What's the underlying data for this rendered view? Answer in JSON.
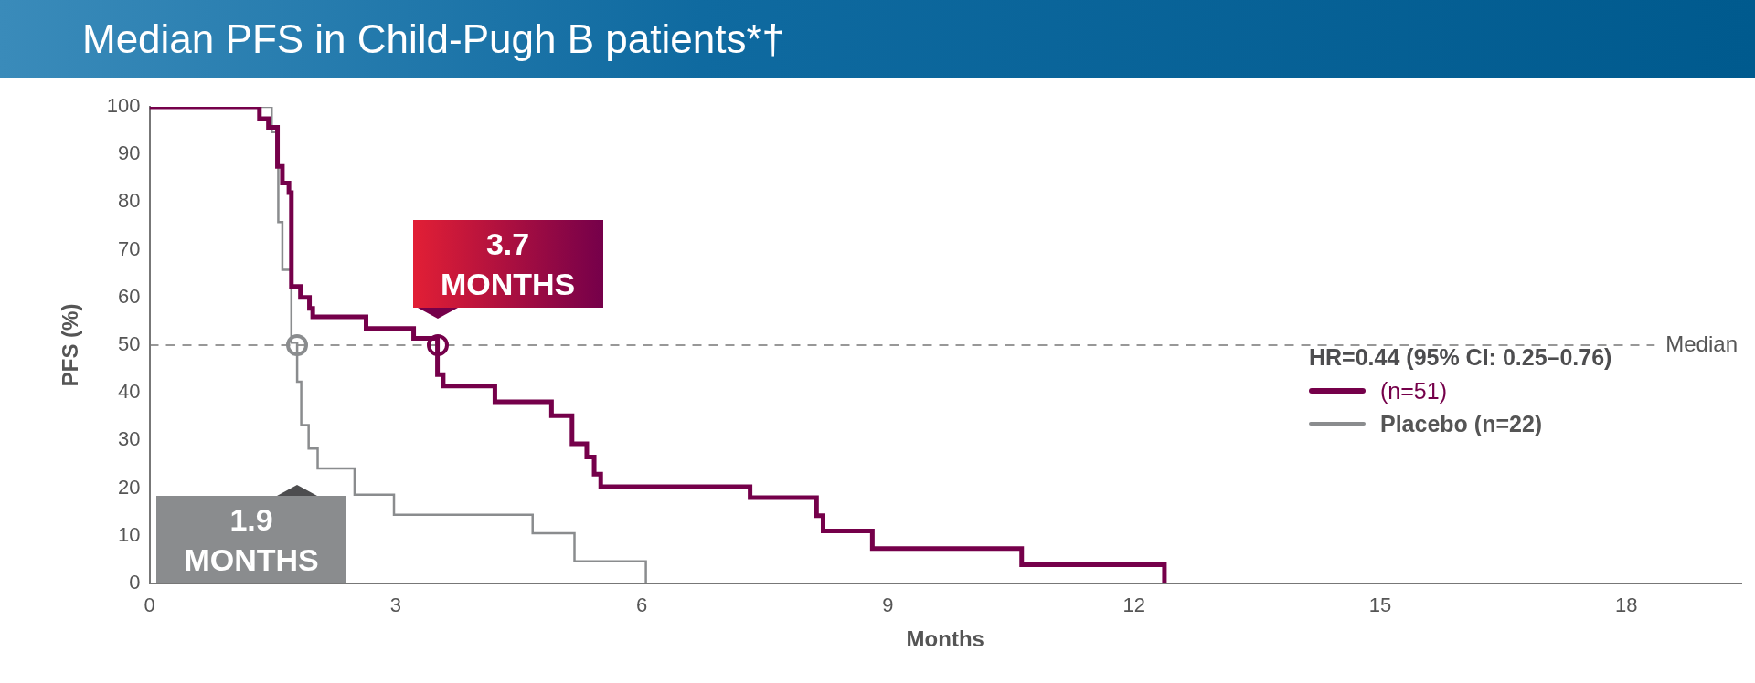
{
  "chart_data": {
    "type": "step",
    "title": "Median PFS in Child-Pugh B patients*†",
    "xlabel": "Months",
    "ylabel": "PFS (%)",
    "series": [
      {
        "name": "(n=51)",
        "color": "#75004a",
        "x": [
          0,
          1.34,
          1.45,
          1.56,
          1.62,
          1.7,
          1.73,
          1.84,
          1.95,
          1.99,
          2.64,
          3.22,
          3.51,
          3.58,
          4.21,
          4.9,
          5.15,
          5.33,
          5.42,
          5.5,
          7.32,
          8.13,
          8.21,
          8.81,
          10.63,
          12.37
        ],
        "values": [
          100,
          97.5,
          95.7,
          87.5,
          84,
          82,
          62.3,
          60,
          57.7,
          55.9,
          53.5,
          51.4,
          43.8,
          41.4,
          38.1,
          35.2,
          29.3,
          26.5,
          22.9,
          20.3,
          18,
          14.2,
          11,
          7.3,
          3.9,
          0
        ]
      },
      {
        "name": "Placebo (n=22)",
        "color": "#8a8c8e",
        "x": [
          0,
          1.49,
          1.57,
          1.62,
          1.73,
          1.8,
          1.85,
          1.94,
          2.05,
          2.5,
          2.98,
          4.67,
          5.18,
          6.05
        ],
        "values": [
          100,
          94.7,
          75.8,
          65.8,
          50.5,
          42.3,
          33.2,
          28.3,
          24.1,
          18.6,
          14.4,
          10.5,
          4.6,
          0
        ]
      }
    ],
    "xlim": [
      0,
      19.4
    ],
    "xticks": [
      0,
      3,
      6,
      9,
      12,
      15,
      18
    ],
    "ylim": [
      0,
      100
    ],
    "yticks": [
      0,
      10,
      20,
      30,
      40,
      50,
      60,
      70,
      80,
      90,
      100
    ],
    "grid": false,
    "legend": "right",
    "marker": "none",
    "line_style": "solid",
    "ref_lines": [
      {
        "axis": "y",
        "value": 50,
        "label": "Median",
        "line_style": "dashed",
        "color": "#777777"
      }
    ],
    "annotations": [
      "HR=0.44 (95% CI: 0.25–0.76)",
      "3.7 MONTHS",
      "1.9 MONTHS"
    ]
  }
}
